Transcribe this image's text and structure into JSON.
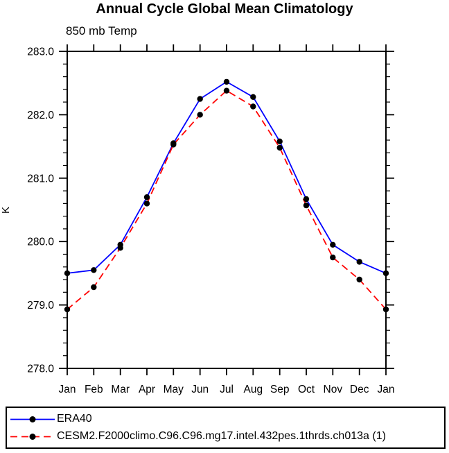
{
  "title": "Annual Cycle Global Mean Climatology",
  "subtitle": "850 mb Temp",
  "y_axis": {
    "label": "K",
    "tick_labels": [
      "283.0",
      "282.0",
      "281.0",
      "280.0",
      "279.0",
      "278.0"
    ]
  },
  "x_axis": {
    "tick_labels": [
      "Jan",
      "Feb",
      "Mar",
      "Apr",
      "May",
      "Jun",
      "Jul",
      "Aug",
      "Sep",
      "Oct",
      "Nov",
      "Dec",
      "Jan"
    ]
  },
  "legend": {
    "items": [
      {
        "label": "ERA40",
        "color": "#0000ff",
        "line_style": "solid",
        "marker": "filled-circle",
        "marker_color": "#000000"
      },
      {
        "label": "CESM2.F2000climo.C96.C96.mg17.intel.432pes.1thrds.ch013a (1)",
        "color": "#ff0000",
        "line_style": "dashed",
        "marker": "filled-circle",
        "marker_color": "#000000"
      }
    ]
  },
  "chart_data": {
    "type": "line",
    "title": "Annual Cycle Global Mean Climatology",
    "subtitle": "850 mb Temp",
    "xlabel": "",
    "ylabel": "K",
    "x": [
      "Jan",
      "Feb",
      "Mar",
      "Apr",
      "May",
      "Jun",
      "Jul",
      "Aug",
      "Sep",
      "Oct",
      "Nov",
      "Dec",
      "Jan"
    ],
    "ylim": [
      278.0,
      283.0
    ],
    "y_major_step": 1.0,
    "y_minor_step": 0.2,
    "grid": false,
    "legend_position": "bottom-left-box",
    "series": [
      {
        "name": "ERA40",
        "color": "#0000ff",
        "line_style": "solid",
        "marker": "filled-circle",
        "marker_color": "#000000",
        "values": [
          279.5,
          279.55,
          279.95,
          280.7,
          281.55,
          282.25,
          282.52,
          282.28,
          281.58,
          280.67,
          279.95,
          279.68,
          279.5
        ]
      },
      {
        "name": "CESM2.F2000climo.C96.C96.mg17.intel.432pes.1thrds.ch013a (1)",
        "color": "#ff0000",
        "line_style": "dashed",
        "marker": "filled-circle",
        "marker_color": "#000000",
        "values": [
          278.93,
          279.28,
          279.9,
          280.6,
          281.53,
          282.0,
          282.38,
          282.13,
          281.48,
          280.57,
          279.75,
          279.4,
          278.93
        ]
      }
    ]
  }
}
